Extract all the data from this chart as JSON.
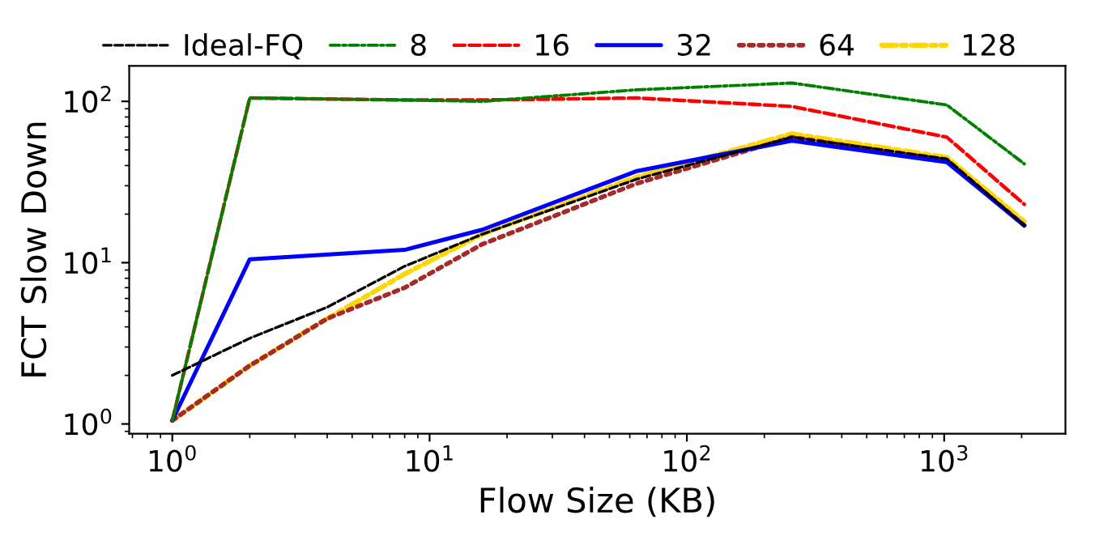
{
  "chart_data": {
    "type": "line",
    "xlabel": "Flow Size (KB)",
    "ylabel": "FCT Slow Down",
    "log": "xy",
    "legend": "top",
    "grid": false,
    "xlim": [
      0.68,
      2960
    ],
    "ylim": [
      0.87,
      166
    ],
    "xticks": [
      {
        "value": 1,
        "label": "10$^{0}$"
      },
      {
        "value": 10,
        "label": "10$^{1}$"
      },
      {
        "value": 100,
        "label": "10$^{2}$"
      },
      {
        "value": 1000,
        "label": "10$^{3}$"
      }
    ],
    "yticks": [
      {
        "value": 1,
        "label": "10$^{0}$"
      },
      {
        "value": 10,
        "label": "10$^{1}$"
      },
      {
        "value": 100,
        "label": "10$^{2}$"
      }
    ],
    "series": [
      {
        "name": "Ideal-FQ",
        "color": "#000000",
        "line_style": "dashed",
        "x": [
          1,
          2,
          4,
          8,
          16,
          64,
          256,
          1024,
          2048
        ],
        "values": [
          2.0,
          3.4,
          5.3,
          9.5,
          15,
          33,
          60,
          44,
          17
        ]
      },
      {
        "name": "8",
        "color": "#008000",
        "line_style": "dashdot",
        "x": [
          1,
          2,
          8,
          16,
          64,
          256,
          1024,
          2048
        ],
        "values": [
          1.05,
          105,
          102,
          100,
          118,
          130,
          95,
          41
        ]
      },
      {
        "name": "16",
        "color": "#ff0000",
        "line_style": "dashed",
        "x": [
          1,
          2,
          8,
          16,
          64,
          256,
          1024,
          2048
        ],
        "values": [
          1.05,
          105,
          102,
          102,
          105,
          93,
          60,
          23
        ]
      },
      {
        "name": "32",
        "color": "#0000ff",
        "line_style": "solid",
        "x": [
          1,
          2,
          8,
          16,
          64,
          256,
          1024,
          2048
        ],
        "values": [
          1.05,
          10.5,
          12,
          16,
          37,
          57,
          42,
          17
        ]
      },
      {
        "name": "64",
        "color": "#a52a2a",
        "line_style": "dotted",
        "x": [
          1,
          2,
          4,
          8,
          16,
          64,
          256,
          1024,
          2048
        ],
        "values": [
          1.05,
          2.3,
          4.5,
          7,
          13,
          31,
          60,
          43,
          17
        ]
      },
      {
        "name": "128",
        "color": "#ffd700",
        "line_style": "dashdot",
        "x": [
          1,
          2,
          4,
          8,
          16,
          64,
          256,
          1024,
          2048
        ],
        "values": [
          1.05,
          2.3,
          4.5,
          8.5,
          15,
          34,
          63,
          45,
          18
        ]
      }
    ]
  }
}
